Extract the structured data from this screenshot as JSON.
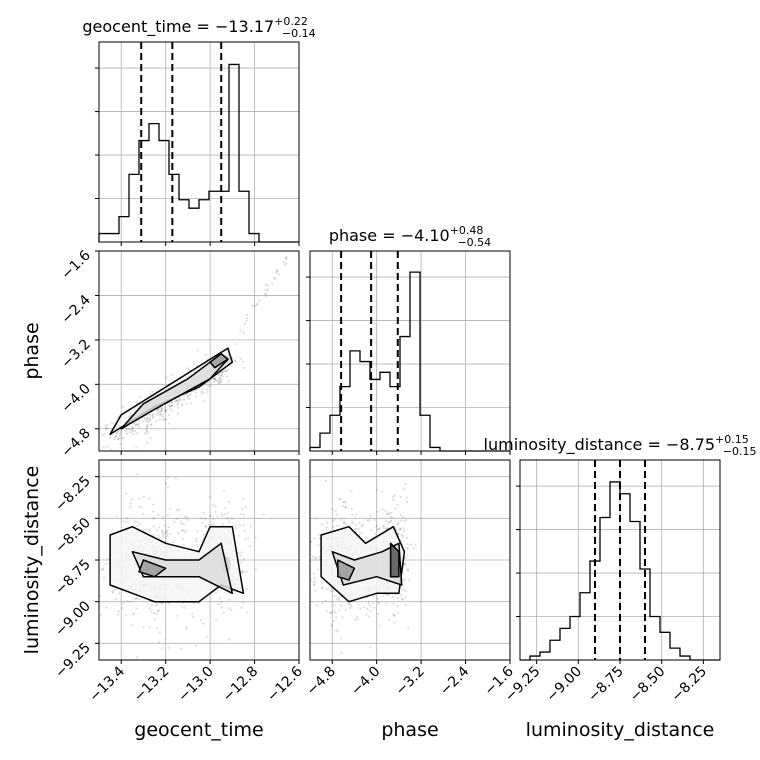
{
  "chart_data": {
    "type": "corner",
    "parameters": [
      {
        "name": "geocent_time",
        "xlabel": "geocent_time",
        "title": {
          "prefix": "geocent_time = ",
          "median": "−13.17",
          "plus": "+0.22",
          "minus": "−0.14"
        },
        "quantiles": [
          -13.31,
          -13.17,
          -12.95
        ],
        "hist_range": [
          -13.5,
          -12.6
        ],
        "hist_bins": [
          0.01,
          0.01,
          0.03,
          0.08,
          0.12,
          0.14,
          0.12,
          0.08,
          0.05,
          0.04,
          0.05,
          0.06,
          0.06,
          0.21,
          0.06,
          0.01,
          0.0,
          0.0,
          0.0,
          0.0
        ],
        "hist_ymax": 0.22,
        "ticks": [
          -13.4,
          -13.2,
          -13.0,
          -12.8,
          -12.6
        ],
        "tick_labels": [
          "−13.4",
          "−13.2",
          "−13.0",
          "−12.8",
          "−12.6"
        ]
      },
      {
        "name": "phase",
        "xlabel": "phase",
        "ylabel": "phase",
        "title": {
          "prefix": "phase = ",
          "median": "−4.10",
          "plus": "+0.48",
          "minus": "−0.54"
        },
        "quantiles": [
          -4.64,
          -4.1,
          -3.62
        ],
        "hist_range": [
          -5.2,
          -1.6
        ],
        "hist_bins": [
          0.01,
          0.05,
          0.1,
          0.18,
          0.28,
          0.25,
          0.2,
          0.22,
          0.18,
          0.32,
          0.5,
          0.1,
          0.01,
          0.0,
          0.0,
          0.0,
          0.0,
          0.0,
          0.0,
          0.0
        ],
        "hist_ymax": 0.52,
        "ticks": [
          -4.8,
          -4.0,
          -3.2,
          -2.4,
          -1.6
        ],
        "tick_labels": [
          "−4.8",
          "−4.0",
          "−3.2",
          "−2.4",
          "−1.6"
        ]
      },
      {
        "name": "luminosity_distance",
        "xlabel": "luminosity_distance",
        "ylabel": "luminosity_distance",
        "title": {
          "prefix": "luminosity_distance = ",
          "median": "−8.75",
          "plus": "+0.15",
          "minus": "−0.15"
        },
        "quantiles": [
          -8.9,
          -8.75,
          -8.6
        ],
        "hist_range": [
          -9.35,
          -8.15
        ],
        "hist_bins": [
          0.0,
          0.01,
          0.02,
          0.05,
          0.08,
          0.11,
          0.17,
          0.25,
          0.36,
          0.45,
          0.42,
          0.35,
          0.23,
          0.11,
          0.07,
          0.03,
          0.01,
          0.0,
          0.0,
          0.0
        ],
        "hist_ymax": 0.47,
        "ticks": [
          -9.25,
          -9.0,
          -8.75,
          -8.5,
          -8.25
        ],
        "tick_labels": [
          "−9.25",
          "−9.00",
          "−8.75",
          "−8.50",
          "−8.25"
        ]
      }
    ],
    "samples_2d": {
      "phase_vs_geocent_time": {
        "ridge": [
          [
            -13.4,
            -4.85
          ],
          [
            -13.2,
            -4.3
          ],
          [
            -13.05,
            -3.9
          ],
          [
            -12.95,
            -3.65
          ]
        ],
        "contours": [
          [
            [
              -13.45,
              -4.9
            ],
            [
              -13.25,
              -4.4
            ],
            [
              -13.05,
              -4.05
            ],
            [
              -12.9,
              -3.6
            ],
            [
              -12.92,
              -3.35
            ],
            [
              -13.0,
              -3.55
            ],
            [
              -13.2,
              -4.05
            ],
            [
              -13.4,
              -4.55
            ]
          ],
          [
            [
              -13.4,
              -4.8
            ],
            [
              -13.25,
              -4.45
            ],
            [
              -13.0,
              -3.9
            ],
            [
              -12.92,
              -3.55
            ],
            [
              -12.95,
              -3.45
            ],
            [
              -13.1,
              -3.9
            ],
            [
              -13.3,
              -4.35
            ]
          ],
          [
            [
              -12.98,
              -3.7
            ],
            [
              -12.92,
              -3.55
            ],
            [
              -12.95,
              -3.45
            ],
            [
              -13.0,
              -3.6
            ]
          ]
        ]
      },
      "luminosity_distance_vs_geocent_time": {
        "contours": [
          [
            [
              -13.45,
              -8.6
            ],
            [
              -13.35,
              -8.55
            ],
            [
              -13.2,
              -8.65
            ],
            [
              -13.05,
              -8.7
            ],
            [
              -13.0,
              -8.55
            ],
            [
              -12.9,
              -8.55
            ],
            [
              -12.85,
              -8.95
            ],
            [
              -12.95,
              -8.9
            ],
            [
              -13.05,
              -9.0
            ],
            [
              -13.25,
              -9.0
            ],
            [
              -13.45,
              -8.9
            ]
          ],
          [
            [
              -13.35,
              -8.7
            ],
            [
              -13.2,
              -8.75
            ],
            [
              -13.05,
              -8.75
            ],
            [
              -12.95,
              -8.65
            ],
            [
              -12.9,
              -8.95
            ],
            [
              -13.05,
              -8.85
            ],
            [
              -13.3,
              -8.85
            ]
          ],
          [
            [
              -13.3,
              -8.75
            ],
            [
              -13.2,
              -8.8
            ],
            [
              -13.25,
              -8.85
            ],
            [
              -13.32,
              -8.82
            ]
          ]
        ]
      },
      "luminosity_distance_vs_phase": {
        "contours": [
          [
            [
              -5.0,
              -8.6
            ],
            [
              -4.5,
              -8.55
            ],
            [
              -4.2,
              -8.65
            ],
            [
              -3.7,
              -8.55
            ],
            [
              -3.5,
              -8.7
            ],
            [
              -3.6,
              -8.95
            ],
            [
              -4.0,
              -8.95
            ],
            [
              -4.5,
              -9.0
            ],
            [
              -5.0,
              -8.85
            ]
          ],
          [
            [
              -4.8,
              -8.7
            ],
            [
              -4.4,
              -8.75
            ],
            [
              -3.9,
              -8.7
            ],
            [
              -3.6,
              -8.65
            ],
            [
              -3.55,
              -8.9
            ],
            [
              -4.0,
              -8.85
            ],
            [
              -4.6,
              -8.9
            ]
          ],
          [
            [
              -4.7,
              -8.75
            ],
            [
              -4.4,
              -8.8
            ],
            [
              -4.5,
              -8.87
            ],
            [
              -4.7,
              -8.85
            ]
          ],
          [
            [
              -3.75,
              -8.65
            ],
            [
              -3.6,
              -8.7
            ],
            [
              -3.6,
              -8.85
            ],
            [
              -3.75,
              -8.85
            ]
          ]
        ]
      }
    }
  }
}
